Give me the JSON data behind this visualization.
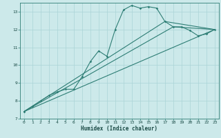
{
  "xlabel": "Humidex (Indice chaleur)",
  "background_color": "#cce9ea",
  "grid_color": "#aad4d6",
  "line_color": "#2d7d74",
  "axis_color": "#2d7d74",
  "tick_color": "#1a4a45",
  "xlim": [
    -0.5,
    23.5
  ],
  "ylim": [
    7,
    13.5
  ],
  "yticks": [
    7,
    8,
    9,
    10,
    11,
    12,
    13
  ],
  "xticks": [
    0,
    1,
    2,
    3,
    4,
    5,
    6,
    7,
    8,
    9,
    10,
    11,
    12,
    13,
    14,
    15,
    16,
    17,
    18,
    19,
    20,
    21,
    22,
    23
  ],
  "series_main": [
    [
      0,
      7.4
    ],
    [
      1,
      7.7
    ],
    [
      2,
      8.0
    ],
    [
      3,
      8.3
    ],
    [
      4,
      8.5
    ],
    [
      5,
      8.65
    ],
    [
      6,
      8.65
    ],
    [
      7,
      9.35
    ],
    [
      8,
      10.2
    ],
    [
      9,
      10.8
    ],
    [
      10,
      10.5
    ],
    [
      11,
      12.0
    ],
    [
      12,
      13.1
    ],
    [
      13,
      13.35
    ],
    [
      14,
      13.2
    ],
    [
      15,
      13.28
    ],
    [
      16,
      13.2
    ],
    [
      17,
      12.45
    ],
    [
      18,
      12.15
    ],
    [
      19,
      12.15
    ],
    [
      20,
      11.95
    ],
    [
      21,
      11.65
    ],
    [
      22,
      11.75
    ],
    [
      23,
      12.0
    ]
  ],
  "series_line1": [
    [
      0,
      7.4
    ],
    [
      23,
      12.0
    ]
  ],
  "series_line2": [
    [
      0,
      7.4
    ],
    [
      18,
      12.15
    ],
    [
      23,
      12.0
    ]
  ],
  "series_line3": [
    [
      0,
      7.4
    ],
    [
      17,
      12.45
    ],
    [
      23,
      12.0
    ]
  ]
}
